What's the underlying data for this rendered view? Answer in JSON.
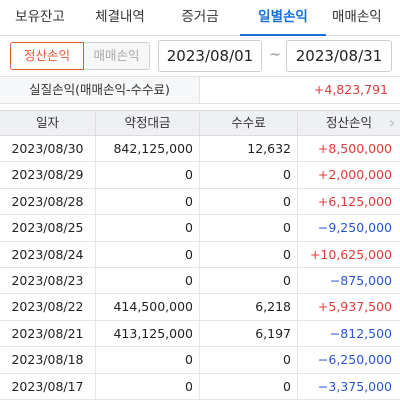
{
  "tabs": [
    {
      "label": "보유잔고",
      "active": false
    },
    {
      "label": "체결내역",
      "active": false
    },
    {
      "label": "증거금",
      "active": false
    },
    {
      "label": "일별손익",
      "active": true
    },
    {
      "label": "매매손익",
      "active": false
    }
  ],
  "filter": {
    "mode_selected": "정산손익",
    "mode_other": "매매손익",
    "date_from": "2023/08/01",
    "separator": "~",
    "date_to": "2023/08/31"
  },
  "summary": {
    "label": "실질손익(매매손익-수수료)",
    "value": "+4,823,791"
  },
  "table": {
    "headers": [
      "일자",
      "약정대금",
      "수수료",
      "정산손익"
    ],
    "rows": [
      {
        "date": "2023/08/30",
        "amount": "842,125,000",
        "fee": "12,632",
        "pnl": "+8,500,000",
        "sign": "pos"
      },
      {
        "date": "2023/08/29",
        "amount": "0",
        "fee": "0",
        "pnl": "+2,000,000",
        "sign": "pos"
      },
      {
        "date": "2023/08/28",
        "amount": "0",
        "fee": "0",
        "pnl": "+6,125,000",
        "sign": "pos"
      },
      {
        "date": "2023/08/25",
        "amount": "0",
        "fee": "0",
        "pnl": "−9,250,000",
        "sign": "neg"
      },
      {
        "date": "2023/08/24",
        "amount": "0",
        "fee": "0",
        "pnl": "+10,625,000",
        "sign": "pos"
      },
      {
        "date": "2023/08/23",
        "amount": "0",
        "fee": "0",
        "pnl": "−875,000",
        "sign": "neg"
      },
      {
        "date": "2023/08/22",
        "amount": "414,500,000",
        "fee": "6,218",
        "pnl": "+5,937,500",
        "sign": "pos"
      },
      {
        "date": "2023/08/21",
        "amount": "413,125,000",
        "fee": "6,197",
        "pnl": "−812,500",
        "sign": "neg"
      },
      {
        "date": "2023/08/18",
        "amount": "0",
        "fee": "0",
        "pnl": "−6,250,000",
        "sign": "neg"
      },
      {
        "date": "2023/08/17",
        "amount": "0",
        "fee": "0",
        "pnl": "−3,375,000",
        "sign": "neg"
      }
    ]
  },
  "colors": {
    "accent": "#1a6fd9",
    "positive": "#e23b3b",
    "negative": "#2a56d6",
    "selected_segment": "#e2573a"
  },
  "icons": {
    "scroll_hint": "chevron-right-icon"
  }
}
